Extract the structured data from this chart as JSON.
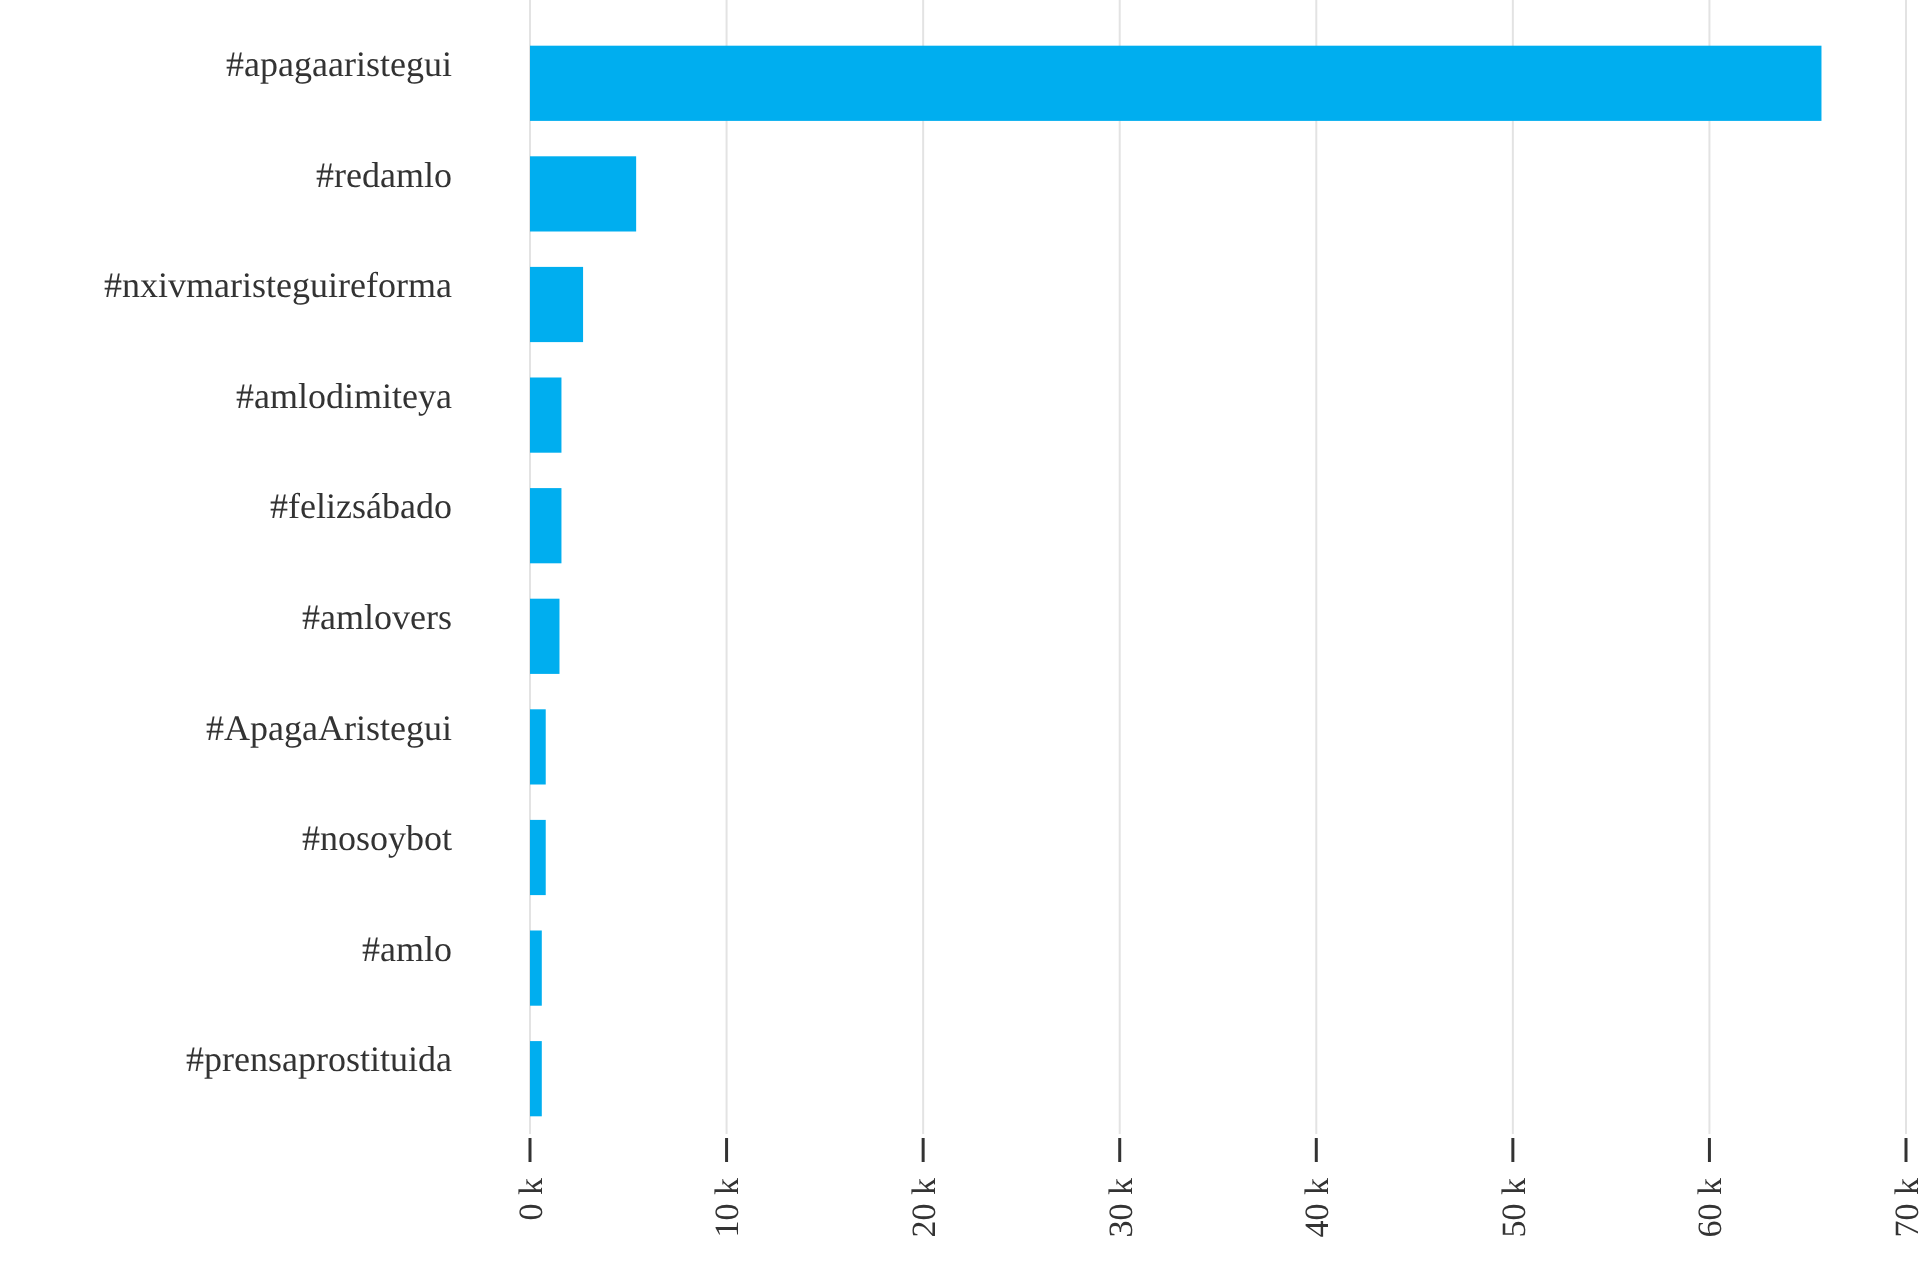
{
  "chart_data": {
    "type": "bar",
    "orientation": "horizontal",
    "categories": [
      "#apagaaristegui",
      "#redamlo",
      "#nxivmaristeguireforma",
      "#amlodimiteya",
      "#felizsábado",
      "#amlovers",
      "#ApagaAristegui",
      "#nosoybot",
      "#amlo",
      "#prensaprostituida"
    ],
    "values": [
      65.7,
      5.4,
      2.7,
      1.6,
      1.6,
      1.5,
      0.8,
      0.8,
      0.6,
      0.6
    ],
    "color": "#00aeef",
    "xlim": [
      0,
      70
    ],
    "xticks": [
      {
        "value": 0,
        "label": "0 k"
      },
      {
        "value": 10,
        "label": "10 k"
      },
      {
        "value": 20,
        "label": "20 k"
      },
      {
        "value": 30,
        "label": "30 k"
      },
      {
        "value": 40,
        "label": "40 k"
      },
      {
        "value": 50,
        "label": "50 k"
      },
      {
        "value": 60,
        "label": "60 k"
      },
      {
        "value": 70,
        "label": "70 k"
      }
    ],
    "grid": "x"
  }
}
